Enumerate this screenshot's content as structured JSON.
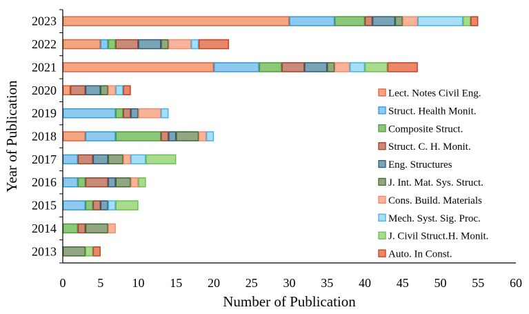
{
  "chart_data": {
    "type": "bar",
    "orientation": "horizontal",
    "stacked": true,
    "xlabel": "Number of Publication",
    "ylabel": "Year  of  Publication",
    "xlim": [
      0,
      60
    ],
    "xticks": [
      0,
      5,
      10,
      15,
      20,
      25,
      30,
      35,
      40,
      45,
      50,
      55,
      60
    ],
    "categories": [
      "2013",
      "2014",
      "2015",
      "2016",
      "2017",
      "2018",
      "2019",
      "2020",
      "2021",
      "2022",
      "2023"
    ],
    "grid": false,
    "legend_position": "right",
    "series": [
      {
        "name": "Lect. Notes Civil Eng.",
        "color": "#F4A582",
        "edge": "#E0603A",
        "values": [
          0,
          0,
          0,
          0,
          0,
          3,
          0,
          1,
          20,
          5,
          30
        ]
      },
      {
        "name": "Struct. Health Monit.",
        "color": "#8FC9F0",
        "edge": "#2E9BD6",
        "values": [
          0,
          0,
          3,
          2,
          2,
          4,
          7,
          0,
          6,
          1,
          6
        ]
      },
      {
        "name": "Composite Struct.",
        "color": "#8DC77A",
        "edge": "#4E9A3A",
        "values": [
          0,
          2,
          1,
          1,
          0,
          6,
          1,
          0,
          3,
          1,
          4
        ]
      },
      {
        "name": "Struct. C. H. Monit.",
        "color": "#C98A78",
        "edge": "#A0402A",
        "values": [
          0,
          1,
          1,
          3,
          2,
          1,
          1,
          2,
          3,
          3,
          1
        ]
      },
      {
        "name": "Eng. Structures",
        "color": "#7BA3B6",
        "edge": "#2E5A78",
        "values": [
          0,
          0,
          1,
          1,
          2,
          1,
          1,
          2,
          3,
          3,
          3
        ]
      },
      {
        "name": "J. Int. Mat. Sys. Struct.",
        "color": "#93A684",
        "edge": "#3E6A2A",
        "values": [
          3,
          3,
          0,
          2,
          2,
          3,
          0,
          1,
          1,
          1,
          1
        ]
      },
      {
        "name": "Cons. Build. Materials",
        "color": "#F8B49A",
        "edge": "#F08A68",
        "values": [
          0,
          1,
          0,
          1,
          1,
          1,
          3,
          1,
          2,
          3,
          2
        ]
      },
      {
        "name": "Mech. Syst. Sig. Proc.",
        "color": "#A8DDF5",
        "edge": "#3FB4E8",
        "values": [
          0,
          0,
          1,
          0,
          2,
          1,
          1,
          1,
          2,
          1,
          6
        ]
      },
      {
        "name": "J. Civil Struct.H. Monit.",
        "color": "#A9DB8E",
        "edge": "#6CBF4A",
        "values": [
          1,
          0,
          3,
          1,
          4,
          0,
          0,
          0,
          3,
          0,
          1
        ]
      },
      {
        "name": "Auto. In Const.",
        "color": "#E8876A",
        "edge": "#C8401E",
        "values": [
          1,
          0,
          0,
          0,
          0,
          0,
          0,
          1,
          4,
          4,
          1
        ]
      }
    ]
  }
}
